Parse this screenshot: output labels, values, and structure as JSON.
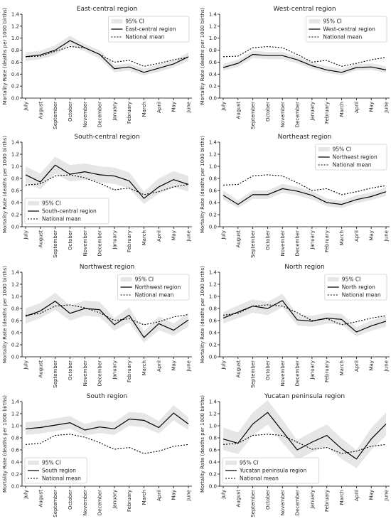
{
  "chart_data": [
    {
      "type": "line",
      "title": "East-central region",
      "ylabel": "Mortality Rate (deaths per 1000 births)",
      "ylim": [
        0,
        1.4
      ],
      "yticks": [
        "0.0",
        "0.2",
        "0.4",
        "0.6",
        "0.8",
        "1.0",
        "1.2",
        "1.4"
      ],
      "categories": [
        "July",
        "August",
        "September",
        "October",
        "November",
        "December",
        "January",
        "February",
        "March",
        "April",
        "May",
        "June"
      ],
      "legend_position": "top-right",
      "legend": [
        "95% CI",
        "East-central region",
        "National mean"
      ],
      "series": [
        {
          "name": "East-central region",
          "values": [
            0.69,
            0.72,
            0.8,
            0.96,
            0.84,
            0.73,
            0.49,
            0.52,
            0.43,
            0.5,
            0.57,
            0.69
          ]
        },
        {
          "name": "National mean",
          "values": [
            0.69,
            0.7,
            0.78,
            0.86,
            0.84,
            0.73,
            0.6,
            0.63,
            0.53,
            0.58,
            0.64,
            0.68
          ]
        }
      ],
      "ci_lower": [
        0.62,
        0.65,
        0.72,
        0.88,
        0.78,
        0.66,
        0.43,
        0.46,
        0.38,
        0.44,
        0.51,
        0.62
      ],
      "ci_upper": [
        0.76,
        0.79,
        0.88,
        1.04,
        0.9,
        0.8,
        0.55,
        0.58,
        0.49,
        0.56,
        0.63,
        0.76
      ]
    },
    {
      "type": "line",
      "title": "West-central region",
      "ylabel": "Mortality Rate (deaths per 1000 births)",
      "ylim": [
        0,
        1.4
      ],
      "yticks": [
        "0.0",
        "0.2",
        "0.4",
        "0.6",
        "0.8",
        "1.0",
        "1.2",
        "1.4"
      ],
      "categories": [
        "July",
        "August",
        "September",
        "October",
        "November",
        "December",
        "January",
        "February",
        "March",
        "April",
        "May",
        "June"
      ],
      "legend_position": "top-right",
      "legend": [
        "95% CI",
        "West-central region",
        "National mean"
      ],
      "series": [
        {
          "name": "West-central region",
          "values": [
            0.51,
            0.58,
            0.73,
            0.71,
            0.71,
            0.64,
            0.54,
            0.47,
            0.43,
            0.51,
            0.52,
            0.47
          ]
        },
        {
          "name": "National mean",
          "values": [
            0.69,
            0.7,
            0.84,
            0.86,
            0.84,
            0.73,
            0.6,
            0.63,
            0.53,
            0.58,
            0.64,
            0.68
          ]
        }
      ],
      "ci_lower": [
        0.46,
        0.52,
        0.67,
        0.65,
        0.65,
        0.58,
        0.49,
        0.42,
        0.38,
        0.46,
        0.47,
        0.42
      ],
      "ci_upper": [
        0.57,
        0.64,
        0.79,
        0.77,
        0.77,
        0.7,
        0.6,
        0.53,
        0.49,
        0.57,
        0.58,
        0.53
      ]
    },
    {
      "type": "line",
      "title": "South-central region",
      "ylabel": "Mortality Rate (deaths per 1000 births)",
      "ylim": [
        0,
        1.4
      ],
      "yticks": [
        "0.0",
        "0.2",
        "0.4",
        "0.6",
        "0.8",
        "1.0",
        "1.2",
        "1.4"
      ],
      "categories": [
        "July",
        "August",
        "September",
        "October",
        "November",
        "December",
        "January",
        "February",
        "March",
        "April",
        "May",
        "June"
      ],
      "legend_position": "bottom-left",
      "legend": [
        "95% CI",
        "South-central region",
        "National mean"
      ],
      "series": [
        {
          "name": "South-central region",
          "values": [
            0.86,
            0.74,
            1.02,
            0.87,
            0.91,
            0.86,
            0.84,
            0.76,
            0.47,
            0.66,
            0.78,
            0.7
          ]
        },
        {
          "name": "National mean",
          "values": [
            0.69,
            0.71,
            0.84,
            0.86,
            0.81,
            0.72,
            0.61,
            0.64,
            0.53,
            0.58,
            0.66,
            0.7
          ]
        }
      ],
      "ci_lower": [
        0.72,
        0.62,
        0.88,
        0.75,
        0.78,
        0.74,
        0.71,
        0.63,
        0.38,
        0.55,
        0.66,
        0.58
      ],
      "ci_upper": [
        1.0,
        0.88,
        1.16,
        1.02,
        1.05,
        1.0,
        0.98,
        0.9,
        0.58,
        0.8,
        0.92,
        0.84
      ]
    },
    {
      "type": "line",
      "title": "Northeast region",
      "ylabel": "Mortality Rate (deaths per 1000 births)",
      "ylim": [
        0,
        1.4
      ],
      "yticks": [
        "0.0",
        "0.2",
        "0.4",
        "0.6",
        "0.8",
        "1.0",
        "1.2",
        "1.4"
      ],
      "categories": [
        "July",
        "August",
        "September",
        "October",
        "November",
        "December",
        "January",
        "February",
        "March",
        "April",
        "May",
        "June"
      ],
      "legend_position": "top-right",
      "legend": [
        "95% CI",
        "Northeast region",
        "National mean"
      ],
      "series": [
        {
          "name": "Northeast region",
          "values": [
            0.52,
            0.37,
            0.53,
            0.53,
            0.63,
            0.59,
            0.52,
            0.4,
            0.37,
            0.45,
            0.5,
            0.58
          ]
        },
        {
          "name": "National mean",
          "values": [
            0.69,
            0.7,
            0.84,
            0.86,
            0.84,
            0.73,
            0.6,
            0.63,
            0.53,
            0.58,
            0.64,
            0.68
          ]
        }
      ],
      "ci_lower": [
        0.45,
        0.31,
        0.46,
        0.46,
        0.56,
        0.52,
        0.45,
        0.34,
        0.31,
        0.39,
        0.44,
        0.51
      ],
      "ci_upper": [
        0.6,
        0.44,
        0.6,
        0.6,
        0.71,
        0.66,
        0.59,
        0.47,
        0.43,
        0.52,
        0.57,
        0.65
      ]
    },
    {
      "type": "line",
      "title": "Northwest region",
      "ylabel": "Mortality Rate (deaths per 1000 births)",
      "ylim": [
        0,
        1.4
      ],
      "yticks": [
        "0.0",
        "0.2",
        "0.4",
        "0.6",
        "0.8",
        "1.0",
        "1.2",
        "1.4"
      ],
      "categories": [
        "July",
        "August",
        "September",
        "October",
        "November",
        "December",
        "January",
        "February",
        "March",
        "April",
        "May",
        "June"
      ],
      "legend_position": "top-right",
      "legend": [
        "95% CI",
        "Northwest region",
        "National mean"
      ],
      "series": [
        {
          "name": "Northwest region",
          "values": [
            0.67,
            0.76,
            0.92,
            0.72,
            0.8,
            0.78,
            0.53,
            0.69,
            0.32,
            0.55,
            0.44,
            0.61
          ]
        },
        {
          "name": "National mean",
          "values": [
            0.69,
            0.72,
            0.84,
            0.86,
            0.81,
            0.73,
            0.6,
            0.63,
            0.53,
            0.58,
            0.66,
            0.7
          ]
        }
      ],
      "ci_lower": [
        0.55,
        0.64,
        0.78,
        0.6,
        0.68,
        0.66,
        0.43,
        0.57,
        0.24,
        0.44,
        0.35,
        0.5
      ],
      "ci_upper": [
        0.8,
        0.89,
        1.06,
        0.85,
        0.93,
        0.91,
        0.64,
        0.82,
        0.42,
        0.67,
        0.55,
        0.73
      ]
    },
    {
      "type": "line",
      "title": "North region",
      "ylabel": "Mortality Rate (deaths per 1000 births)",
      "ylim": [
        0,
        1.4
      ],
      "yticks": [
        "0.0",
        "0.2",
        "0.4",
        "0.6",
        "0.8",
        "1.0",
        "1.2",
        "1.4"
      ],
      "categories": [
        "July",
        "August",
        "September",
        "October",
        "November",
        "December",
        "January",
        "February",
        "March",
        "April",
        "May",
        "June"
      ],
      "legend_position": "top-right",
      "legend": [
        "95% CI",
        "North region",
        "National mean"
      ],
      "series": [
        {
          "name": "North region",
          "values": [
            0.64,
            0.74,
            0.84,
            0.8,
            0.93,
            0.61,
            0.59,
            0.64,
            0.62,
            0.41,
            0.51,
            0.59
          ]
        },
        {
          "name": "National mean",
          "values": [
            0.69,
            0.72,
            0.84,
            0.86,
            0.84,
            0.73,
            0.6,
            0.63,
            0.53,
            0.58,
            0.64,
            0.68
          ]
        }
      ],
      "ci_lower": [
        0.55,
        0.64,
        0.73,
        0.69,
        0.82,
        0.52,
        0.5,
        0.55,
        0.53,
        0.34,
        0.43,
        0.5
      ],
      "ci_upper": [
        0.74,
        0.85,
        0.95,
        0.91,
        1.04,
        0.7,
        0.68,
        0.73,
        0.71,
        0.49,
        0.6,
        0.68
      ]
    },
    {
      "type": "line",
      "title": "South region",
      "ylabel": "Mortality Rate (deaths per 1000 births)",
      "ylim": [
        0,
        1.4
      ],
      "yticks": [
        "0.0",
        "0.2",
        "0.4",
        "0.6",
        "0.8",
        "1.0",
        "1.2",
        "1.4"
      ],
      "categories": [
        "July",
        "August",
        "September",
        "October",
        "November",
        "December",
        "January",
        "February",
        "March",
        "April",
        "May",
        "June"
      ],
      "legend_position": "bottom-left",
      "legend": [
        "95% CI",
        "South region",
        "National mean"
      ],
      "series": [
        {
          "name": "South region",
          "values": [
            0.95,
            0.97,
            1.01,
            1.05,
            0.93,
            0.98,
            0.95,
            1.11,
            1.09,
            0.97,
            1.21,
            1.03
          ]
        },
        {
          "name": "National mean",
          "values": [
            0.69,
            0.71,
            0.84,
            0.86,
            0.81,
            0.72,
            0.61,
            0.64,
            0.54,
            0.58,
            0.66,
            0.69
          ]
        }
      ],
      "ci_lower": [
        0.85,
        0.87,
        0.91,
        0.95,
        0.84,
        0.88,
        0.85,
        1.0,
        0.98,
        0.87,
        1.09,
        0.93
      ],
      "ci_upper": [
        1.06,
        1.08,
        1.12,
        1.16,
        1.03,
        1.09,
        1.06,
        1.23,
        1.21,
        1.08,
        1.34,
        1.14
      ]
    },
    {
      "type": "line",
      "title": "Yucatan peninsula region",
      "ylabel": "Mortality Rate (deaths per 1000 births)",
      "ylim": [
        0,
        1.4
      ],
      "yticks": [
        "0.0",
        "0.2",
        "0.4",
        "0.6",
        "0.8",
        "1.0",
        "1.2",
        "1.4"
      ],
      "categories": [
        "July",
        "August",
        "September",
        "October",
        "November",
        "December",
        "January",
        "February",
        "March",
        "April",
        "May",
        "June"
      ],
      "legend_position": "bottom-left",
      "legend": [
        "95% CI",
        "Yucatan peninsula region",
        "National mean"
      ],
      "series": [
        {
          "name": "Yucatan peninsula region",
          "values": [
            0.78,
            0.71,
            1.03,
            1.22,
            0.91,
            0.6,
            0.73,
            0.84,
            0.62,
            0.45,
            0.78,
            1.03
          ]
        },
        {
          "name": "National mean",
          "values": [
            0.69,
            0.71,
            0.84,
            0.86,
            0.84,
            0.73,
            0.61,
            0.64,
            0.54,
            0.58,
            0.66,
            0.69
          ]
        }
      ],
      "ci_lower": [
        0.6,
        0.53,
        0.84,
        1.02,
        0.72,
        0.44,
        0.56,
        0.66,
        0.45,
        0.3,
        0.6,
        0.84
      ],
      "ci_upper": [
        0.97,
        0.89,
        1.22,
        1.42,
        1.1,
        0.76,
        0.9,
        1.02,
        0.79,
        0.6,
        0.96,
        1.22
      ]
    }
  ]
}
